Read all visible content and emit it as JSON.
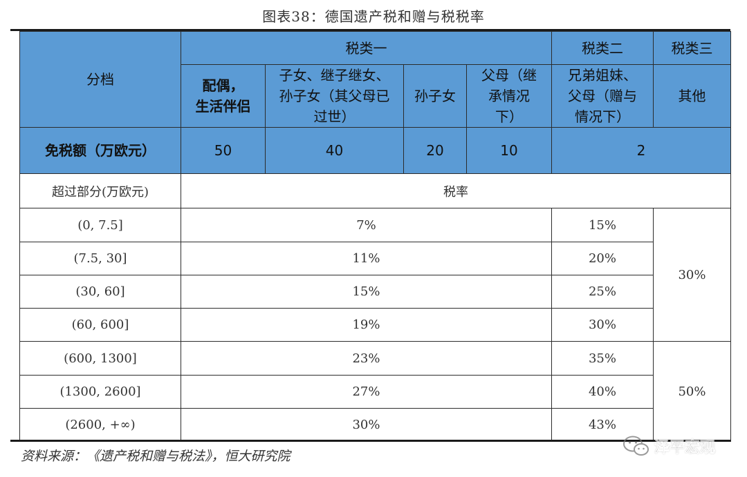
{
  "title": "图表38：德国遗产税和赠与税税率",
  "source": "资料来源：《遗产税和赠与税法》，恒大研究院",
  "watermark": "泽平宏观",
  "header": {
    "tier_label": "分档",
    "class1": "税类一",
    "class2": "税类二",
    "class3": "税类三",
    "sub_spouse": [
      "配偶，",
      "生活伴侣"
    ],
    "sub_children": [
      "子女、继子继女、",
      "孙子女（其父母已",
      "过世）"
    ],
    "sub_grandchildren": "孙子女",
    "sub_parents": [
      "父母（继",
      "承情况",
      "下）"
    ],
    "sub_class2": [
      "兄弟姐妹、",
      "父母（赠与",
      "情况下）"
    ],
    "sub_class3": "其他"
  },
  "exemption": {
    "label": "免税额（万欧元）",
    "spouse": "50",
    "children": "40",
    "grandchildren": "20",
    "parents": "10",
    "class2_3": "2"
  },
  "rate_header": {
    "label": "超过部分(万欧元)",
    "rate": "税率"
  },
  "rows": [
    {
      "range": "(0, 7.5]",
      "class1": "7%",
      "class2": "15%"
    },
    {
      "range": "(7.5, 30]",
      "class1": "11%",
      "class2": "20%"
    },
    {
      "range": "(30, 60]",
      "class1": "15%",
      "class2": "25%"
    },
    {
      "range": "(60, 600]",
      "class1": "19%",
      "class2": "30%"
    },
    {
      "range": "(600, 1300]",
      "class1": "23%",
      "class2": "35%"
    },
    {
      "range": "(1300, 2600]",
      "class1": "27%",
      "class2": "40%"
    },
    {
      "range": "(2600, +∞)",
      "class1": "30%",
      "class2": "43%"
    }
  ],
  "class3_rates": [
    "30%",
    "50%"
  ]
}
